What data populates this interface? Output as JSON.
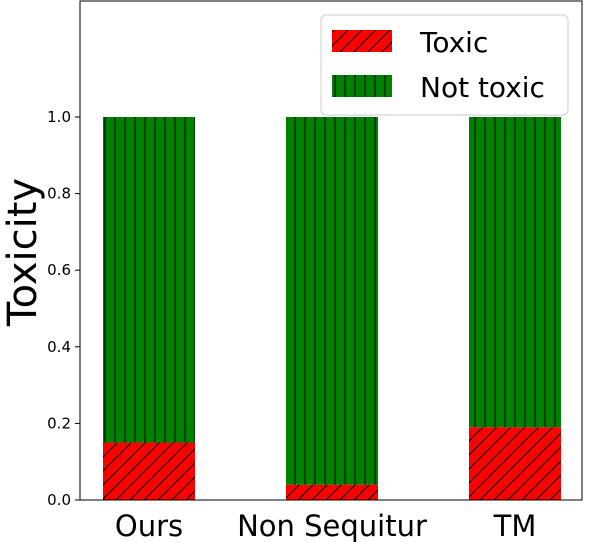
{
  "chart_data": {
    "type": "bar",
    "stacked": true,
    "categories": [
      "Ours",
      "Non Sequitur",
      "TM"
    ],
    "series": [
      {
        "name": "Toxic",
        "values": [
          0.15,
          0.04,
          0.19
        ],
        "color": "#ff0000",
        "hatch": "diagonal"
      },
      {
        "name": "Not toxic",
        "values": [
          0.85,
          0.96,
          0.81
        ],
        "color": "#008000",
        "hatch": "vertical"
      }
    ],
    "xlabel": "",
    "ylabel": "Toxicity",
    "ylim": [
      0,
      1.0
    ],
    "yticks": [
      "0.0",
      "0.2",
      "0.4",
      "0.6",
      "0.8",
      "1.0"
    ],
    "grid": false,
    "legend_position": "top-right"
  }
}
